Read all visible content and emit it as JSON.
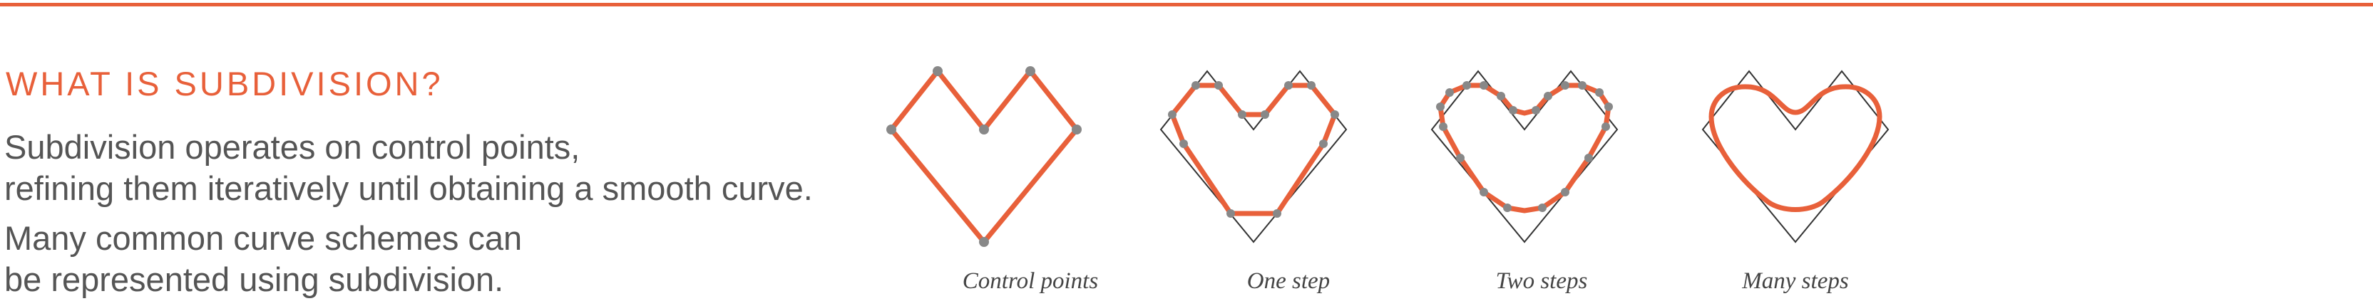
{
  "heading": "WHAT IS SUBDIVISION?",
  "paragraph1": {
    "line1": "Subdivision operates on control points,",
    "line2": "refining them iteratively until obtaining a smooth curve."
  },
  "paragraph2": {
    "line1": "Many common curve schemes can",
    "line2": "be represented using subdivision."
  },
  "figures": [
    {
      "caption": "Control points"
    },
    {
      "caption": "One step"
    },
    {
      "caption": "Two steps"
    },
    {
      "caption": "Many steps"
    }
  ],
  "colors": {
    "accent": "#e8603a",
    "text": "#555555",
    "control_point": "#888888",
    "outline": "#333333"
  }
}
